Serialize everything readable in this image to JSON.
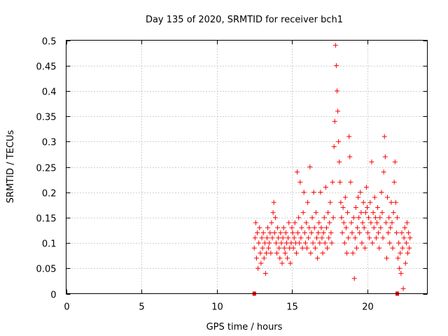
{
  "chart_data": {
    "type": "scatter",
    "title": "Day 135 of 2020, SRMTID for receiver bch1",
    "xlabel": "GPS time / hours",
    "ylabel": "SRMTID / TECUs",
    "xlim": [
      0,
      24
    ],
    "ylim": [
      0,
      0.5
    ],
    "xticks": [
      0,
      5,
      10,
      15,
      20
    ],
    "yticks": [
      0,
      0.05,
      0.1,
      0.15,
      0.2,
      0.25,
      0.3,
      0.35,
      0.4,
      0.45,
      0.5
    ],
    "xtick_labels": [
      "0",
      "5",
      "10",
      "15",
      "20"
    ],
    "ytick_labels": [
      "0",
      "0.05",
      "0.1",
      "0.15",
      "0.2",
      "0.25",
      "0.3",
      "0.35",
      "0.4",
      "0.45",
      "0.5"
    ],
    "grid": true,
    "marker": "+",
    "color": "#ff0000",
    "zero_markers": [
      12.5,
      22.0
    ],
    "series": [
      {
        "name": "SRMTID",
        "points": [
          [
            12.5,
            0.09
          ],
          [
            12.55,
            0.11
          ],
          [
            12.6,
            0.14
          ],
          [
            12.65,
            0.07
          ],
          [
            12.7,
            0.12
          ],
          [
            12.75,
            0.05
          ],
          [
            12.8,
            0.1
          ],
          [
            12.85,
            0.13
          ],
          [
            12.9,
            0.08
          ],
          [
            12.95,
            0.06
          ],
          [
            13.0,
            0.11
          ],
          [
            13.05,
            0.09
          ],
          [
            13.1,
            0.12
          ],
          [
            13.15,
            0.07
          ],
          [
            13.2,
            0.1
          ],
          [
            13.25,
            0.04
          ],
          [
            13.3,
            0.08
          ],
          [
            13.35,
            0.11
          ],
          [
            13.4,
            0.13
          ],
          [
            13.45,
            0.09
          ],
          [
            13.5,
            0.1
          ],
          [
            13.55,
            0.12
          ],
          [
            13.6,
            0.08
          ],
          [
            13.65,
            0.14
          ],
          [
            13.7,
            0.11
          ],
          [
            13.75,
            0.16
          ],
          [
            13.8,
            0.18
          ],
          [
            13.85,
            0.12
          ],
          [
            13.9,
            0.15
          ],
          [
            13.95,
            0.1
          ],
          [
            14.0,
            0.08
          ],
          [
            14.05,
            0.13
          ],
          [
            14.1,
            0.11
          ],
          [
            14.15,
            0.09
          ],
          [
            14.2,
            0.07
          ],
          [
            14.25,
            0.12
          ],
          [
            14.3,
            0.1
          ],
          [
            14.35,
            0.06
          ],
          [
            14.4,
            0.11
          ],
          [
            14.45,
            0.13
          ],
          [
            14.5,
            0.09
          ],
          [
            14.55,
            0.08
          ],
          [
            14.6,
            0.12
          ],
          [
            14.65,
            0.1
          ],
          [
            14.7,
            0.07
          ],
          [
            14.75,
            0.11
          ],
          [
            14.8,
            0.14
          ],
          [
            14.85,
            0.09
          ],
          [
            14.9,
            0.06
          ],
          [
            14.95,
            0.1
          ],
          [
            15.0,
            0.13
          ],
          [
            15.05,
            0.12
          ],
          [
            15.1,
            0.09
          ],
          [
            15.15,
            0.11
          ],
          [
            15.2,
            0.14
          ],
          [
            15.25,
            0.1
          ],
          [
            15.3,
            0.08
          ],
          [
            15.35,
            0.24
          ],
          [
            15.4,
            0.12
          ],
          [
            15.45,
            0.15
          ],
          [
            15.5,
            0.1
          ],
          [
            15.55,
            0.22
          ],
          [
            15.6,
            0.11
          ],
          [
            15.65,
            0.13
          ],
          [
            15.7,
            0.09
          ],
          [
            15.75,
            0.16
          ],
          [
            15.8,
            0.2
          ],
          [
            15.85,
            0.12
          ],
          [
            15.9,
            0.1
          ],
          [
            15.95,
            0.14
          ],
          [
            16.0,
            0.09
          ],
          [
            16.05,
            0.18
          ],
          [
            16.1,
            0.11
          ],
          [
            16.15,
            0.13
          ],
          [
            16.2,
            0.25
          ],
          [
            16.25,
            0.08
          ],
          [
            16.3,
            0.12
          ],
          [
            16.35,
            0.15
          ],
          [
            16.4,
            0.1
          ],
          [
            16.45,
            0.2
          ],
          [
            16.5,
            0.13
          ],
          [
            16.55,
            0.09
          ],
          [
            16.6,
            0.16
          ],
          [
            16.65,
            0.11
          ],
          [
            16.7,
            0.07
          ],
          [
            16.75,
            0.12
          ],
          [
            16.8,
            0.14
          ],
          [
            16.85,
            0.1
          ],
          [
            16.9,
            0.2
          ],
          [
            16.95,
            0.13
          ],
          [
            17.0,
            0.11
          ],
          [
            17.05,
            0.08
          ],
          [
            17.1,
            0.12
          ],
          [
            17.15,
            0.15
          ],
          [
            17.2,
            0.1
          ],
          [
            17.25,
            0.21
          ],
          [
            17.3,
            0.13
          ],
          [
            17.35,
            0.09
          ],
          [
            17.4,
            0.16
          ],
          [
            17.45,
            0.11
          ],
          [
            17.5,
            0.14
          ],
          [
            17.55,
            0.18
          ],
          [
            17.6,
            0.12
          ],
          [
            17.65,
            0.1
          ],
          [
            17.7,
            0.22
          ],
          [
            17.75,
            0.15
          ],
          [
            17.8,
            0.29
          ],
          [
            17.85,
            0.34
          ],
          [
            17.9,
            0.49
          ],
          [
            17.95,
            0.45
          ],
          [
            18.0,
            0.4
          ],
          [
            18.05,
            0.36
          ],
          [
            18.1,
            0.3
          ],
          [
            18.15,
            0.26
          ],
          [
            18.2,
            0.22
          ],
          [
            18.25,
            0.18
          ],
          [
            18.3,
            0.15
          ],
          [
            18.35,
            0.12
          ],
          [
            18.4,
            0.17
          ],
          [
            18.45,
            0.14
          ],
          [
            18.5,
            0.1
          ],
          [
            18.55,
            0.19
          ],
          [
            18.6,
            0.13
          ],
          [
            18.65,
            0.08
          ],
          [
            18.7,
            0.16
          ],
          [
            18.75,
            0.11
          ],
          [
            18.8,
            0.31
          ],
          [
            18.85,
            0.27
          ],
          [
            18.9,
            0.22
          ],
          [
            18.95,
            0.14
          ],
          [
            19.0,
            0.12
          ],
          [
            19.05,
            0.08
          ],
          [
            19.1,
            0.15
          ],
          [
            19.15,
            0.03
          ],
          [
            19.2,
            0.11
          ],
          [
            19.25,
            0.17
          ],
          [
            19.3,
            0.09
          ],
          [
            19.35,
            0.13
          ],
          [
            19.4,
            0.19
          ],
          [
            19.45,
            0.15
          ],
          [
            19.5,
            0.12
          ],
          [
            19.55,
            0.2
          ],
          [
            19.6,
            0.16
          ],
          [
            19.65,
            0.1
          ],
          [
            19.7,
            0.14
          ],
          [
            19.75,
            0.18
          ],
          [
            19.8,
            0.13
          ],
          [
            19.85,
            0.09
          ],
          [
            19.9,
            0.16
          ],
          [
            19.95,
            0.21
          ],
          [
            20.0,
            0.17
          ],
          [
            20.05,
            0.12
          ],
          [
            20.1,
            0.15
          ],
          [
            20.15,
            0.11
          ],
          [
            20.2,
            0.18
          ],
          [
            20.25,
            0.14
          ],
          [
            20.3,
            0.26
          ],
          [
            20.35,
            0.1
          ],
          [
            20.4,
            0.16
          ],
          [
            20.45,
            0.13
          ],
          [
            20.5,
            0.19
          ],
          [
            20.55,
            0.15
          ],
          [
            20.6,
            0.11
          ],
          [
            20.65,
            0.14
          ],
          [
            20.7,
            0.17
          ],
          [
            20.75,
            0.12
          ],
          [
            20.8,
            0.09
          ],
          [
            20.85,
            0.15
          ],
          [
            20.9,
            0.13
          ],
          [
            20.95,
            0.2
          ],
          [
            21.0,
            0.16
          ],
          [
            21.05,
            0.11
          ],
          [
            21.1,
            0.24
          ],
          [
            21.15,
            0.31
          ],
          [
            21.2,
            0.27
          ],
          [
            21.25,
            0.14
          ],
          [
            21.3,
            0.07
          ],
          [
            21.35,
            0.19
          ],
          [
            21.4,
            0.12
          ],
          [
            21.45,
            0.15
          ],
          [
            21.5,
            0.1
          ],
          [
            21.55,
            0.13
          ],
          [
            21.6,
            0.18
          ],
          [
            21.65,
            0.14
          ],
          [
            21.7,
            0.09
          ],
          [
            21.75,
            0.16
          ],
          [
            21.8,
            0.22
          ],
          [
            21.85,
            0.26
          ],
          [
            21.9,
            0.18
          ],
          [
            21.95,
            0.12
          ],
          [
            22.0,
            0.15
          ],
          [
            22.05,
            0.07
          ],
          [
            22.1,
            0.1
          ],
          [
            22.15,
            0.05
          ],
          [
            22.2,
            0.08
          ],
          [
            22.25,
            0.04
          ],
          [
            22.3,
            0.12
          ],
          [
            22.35,
            0.09
          ],
          [
            22.4,
            0.01
          ],
          [
            22.45,
            0.11
          ],
          [
            22.5,
            0.13
          ],
          [
            22.55,
            0.06
          ],
          [
            22.6,
            0.1
          ],
          [
            22.65,
            0.14
          ],
          [
            22.7,
            0.08
          ],
          [
            22.75,
            0.12
          ],
          [
            22.8,
            0.09
          ],
          [
            22.85,
            0.11
          ]
        ]
      }
    ]
  }
}
